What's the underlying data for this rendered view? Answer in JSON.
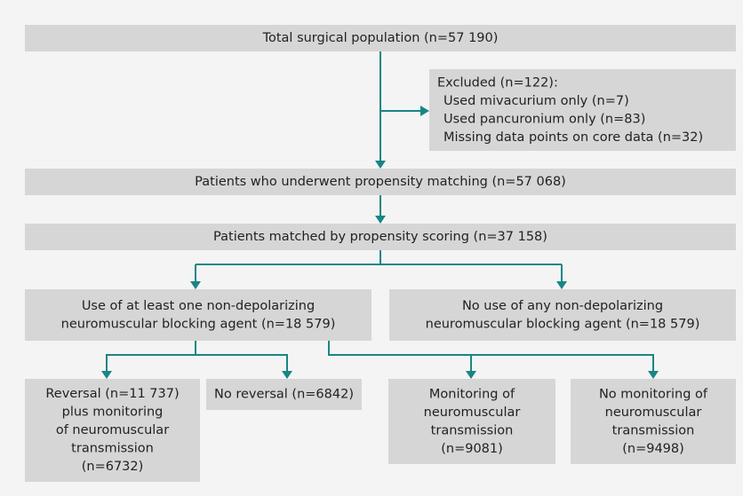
{
  "nodes": [
    {
      "lines": [
        "Total surgical population (n=57 190)"
      ]
    },
    {
      "lines": [
        "Excluded (n=122):",
        "Used mivacurium only (n=7)",
        "Used pancuronium only (n=83)",
        "Missing data points on core data (n=32)"
      ]
    },
    {
      "lines": [
        "Patients who underwent propensity matching (n=57 068)"
      ]
    },
    {
      "lines": [
        "Patients matched by propensity scoring (n=37 158)"
      ]
    },
    {
      "lines": [
        "Use of at least one non-depolarizing",
        "neuromuscular blocking agent (n=18 579)"
      ]
    },
    {
      "lines": [
        "No use of any non-depolarizing",
        "neuromuscular blocking agent (n=18 579)"
      ]
    },
    {
      "lines": [
        "Reversal (n=11 737)",
        "plus monitoring",
        "of neuromuscular",
        "transmission",
        "(n=6732)"
      ]
    },
    {
      "lines": [
        "No reversal (n=6842)"
      ]
    },
    {
      "lines": [
        "Monitoring of",
        "neuromuscular",
        "transmission",
        "(n=9081)"
      ]
    },
    {
      "lines": [
        "No monitoring of",
        "neuromuscular",
        "transmission",
        "(n=9498)"
      ]
    }
  ]
}
